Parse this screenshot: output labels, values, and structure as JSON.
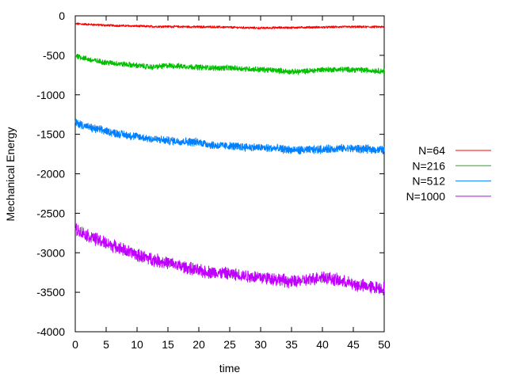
{
  "chart_data": {
    "type": "line",
    "title": "",
    "xlabel": "time",
    "ylabel": "Mechanical Energy",
    "xlim": [
      0,
      50
    ],
    "ylim": [
      -4000,
      0
    ],
    "x_ticks": [
      "0",
      "5",
      "10",
      "15",
      "20",
      "25",
      "30",
      "35",
      "40",
      "45",
      "50"
    ],
    "y_ticks": [
      "0",
      "-500",
      "-1000",
      "-1500",
      "-2000",
      "-2500",
      "-3000",
      "-3500",
      "-4000"
    ],
    "grid": false,
    "legend_position": "right",
    "x": [
      0,
      2.5,
      5,
      7.5,
      10,
      12.5,
      15,
      17.5,
      20,
      22.5,
      25,
      27.5,
      30,
      32.5,
      35,
      37.5,
      40,
      42.5,
      45,
      47.5,
      50
    ],
    "series": [
      {
        "name": "N=64",
        "color": "#ff0000",
        "noise": 12,
        "values": [
          -100,
          -110,
          -120,
          -125,
          -130,
          -135,
          -135,
          -138,
          -140,
          -140,
          -145,
          -150,
          -155,
          -150,
          -150,
          -145,
          -145,
          -140,
          -140,
          -140,
          -140
        ]
      },
      {
        "name": "N=216",
        "color": "#00c000",
        "noise": 30,
        "values": [
          -500,
          -560,
          -590,
          -610,
          -630,
          -650,
          -630,
          -640,
          -650,
          -660,
          -660,
          -670,
          -680,
          -690,
          -710,
          -700,
          -680,
          -680,
          -680,
          -690,
          -700
        ]
      },
      {
        "name": "N=512",
        "color": "#0080ff",
        "noise": 45,
        "values": [
          -1350,
          -1420,
          -1460,
          -1500,
          -1530,
          -1560,
          -1580,
          -1590,
          -1600,
          -1640,
          -1650,
          -1660,
          -1670,
          -1680,
          -1700,
          -1700,
          -1690,
          -1680,
          -1680,
          -1690,
          -1700
        ]
      },
      {
        "name": "N=1000",
        "color": "#c000ff",
        "noise": 70,
        "values": [
          -2700,
          -2800,
          -2880,
          -2950,
          -3030,
          -3080,
          -3130,
          -3180,
          -3230,
          -3250,
          -3270,
          -3290,
          -3310,
          -3330,
          -3370,
          -3350,
          -3300,
          -3350,
          -3400,
          -3430,
          -3450
        ]
      }
    ]
  }
}
